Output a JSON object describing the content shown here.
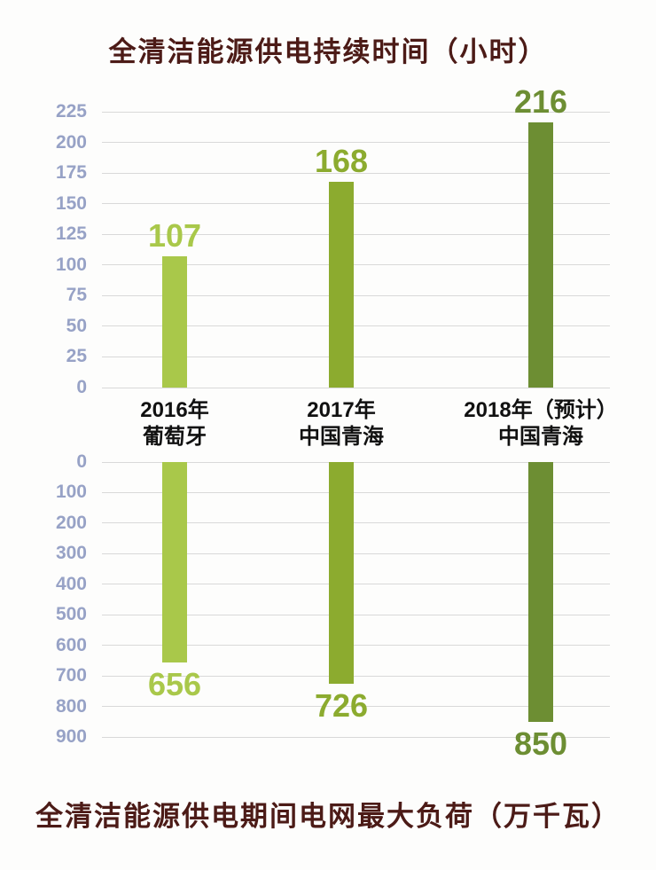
{
  "colors": {
    "title": "#4c1b17",
    "tick": "#97a2c6",
    "grid": "#d9d9d9",
    "background": "#fdfdfc",
    "category_text": "#111111"
  },
  "chart_data": [
    {
      "type": "bar",
      "direction": "up",
      "title": "全清洁能源供电持续时间（小时）",
      "categories": [
        [
          "2016年",
          "葡萄牙"
        ],
        [
          "2017年",
          "中国青海"
        ],
        [
          "2018年（预计）",
          "中国青海"
        ]
      ],
      "values": [
        107,
        168,
        216
      ],
      "data_labels": [
        "107",
        "168",
        "216"
      ],
      "bar_colors": [
        "#a9c84a",
        "#8cab2f",
        "#6d8e33"
      ],
      "yticks": [
        225,
        200,
        175,
        150,
        125,
        100,
        75,
        50,
        25,
        0
      ],
      "ylim": [
        0,
        225
      ],
      "ylabel": "",
      "xlabel": "",
      "grid": true,
      "legend": false
    },
    {
      "type": "bar",
      "direction": "down",
      "title": "全清洁能源供电期间电网最大负荷（万千瓦）",
      "categories": [
        [
          "2016年",
          "葡萄牙"
        ],
        [
          "2017年",
          "中国青海"
        ],
        [
          "2018年（预计）",
          "中国青海"
        ]
      ],
      "values": [
        656,
        726,
        850
      ],
      "data_labels": [
        "656",
        "726",
        "850"
      ],
      "bar_colors": [
        "#a9c84a",
        "#8cab2f",
        "#6d8e33"
      ],
      "yticks": [
        0,
        100,
        200,
        300,
        400,
        500,
        600,
        700,
        800,
        900
      ],
      "ylim": [
        0,
        900
      ],
      "ylabel": "",
      "xlabel": "",
      "grid": true,
      "legend": false
    }
  ]
}
